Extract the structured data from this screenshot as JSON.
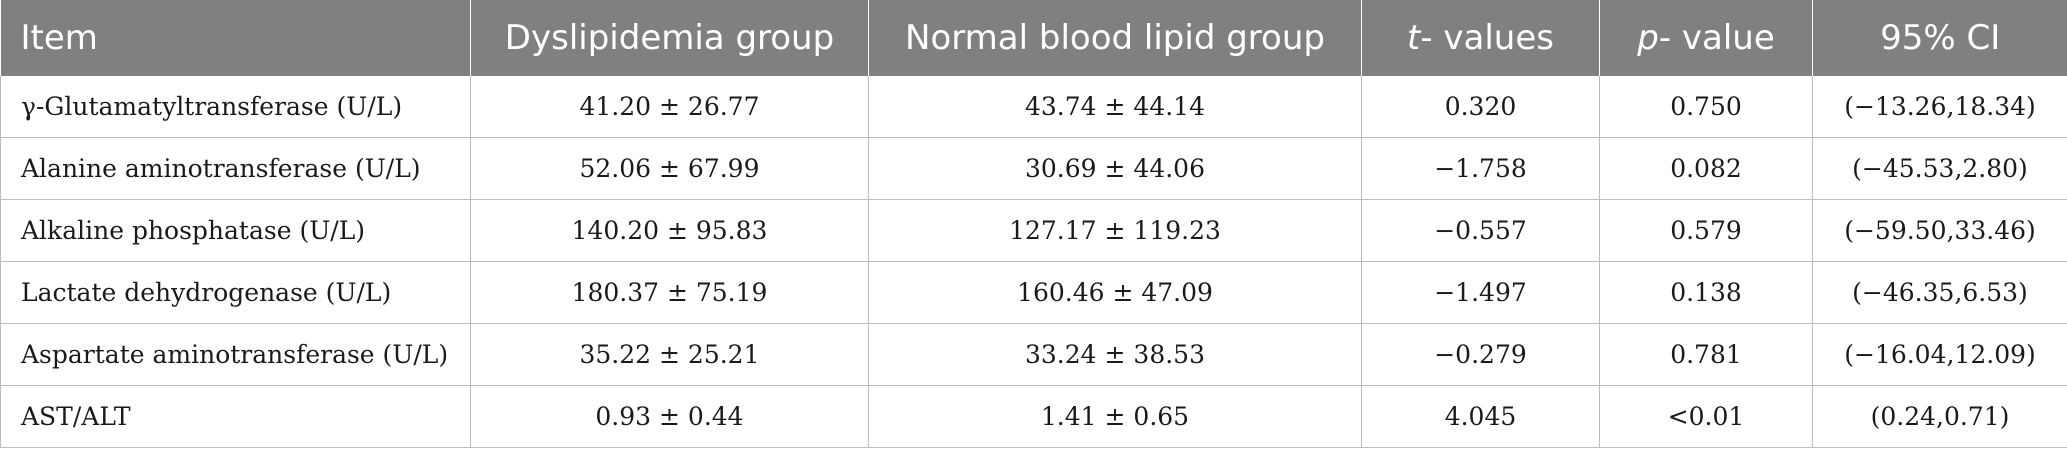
{
  "header": {
    "item": "Item",
    "dyslipidemia": "Dyslipidemia group",
    "normal": "Normal blood lipid group",
    "t_letter": "t",
    "t_suffix": "- values",
    "p_letter": "p",
    "p_suffix": "- value",
    "ci": "95% CI"
  },
  "rows": [
    {
      "item": "γ-Glutamatyltransferase (U/L)",
      "dys": "41.20 ± 26.77",
      "normal": "43.74 ± 44.14",
      "t": "0.320",
      "p": "0.750",
      "ci": "(−13.26,18.34)"
    },
    {
      "item": "Alanine aminotransferase (U/L)",
      "dys": "52.06 ± 67.99",
      "normal": "30.69 ± 44.06",
      "t": "−1.758",
      "p": "0.082",
      "ci": "(−45.53,2.80)"
    },
    {
      "item": "Alkaline phosphatase (U/L)",
      "dys": "140.20 ± 95.83",
      "normal": "127.17 ± 119.23",
      "t": "−0.557",
      "p": "0.579",
      "ci": "(−59.50,33.46)"
    },
    {
      "item": "Lactate dehydrogenase (U/L)",
      "dys": "180.37 ± 75.19",
      "normal": "160.46 ± 47.09",
      "t": "−1.497",
      "p": "0.138",
      "ci": "(−46.35,6.53)"
    },
    {
      "item": "Aspartate aminotransferase (U/L)",
      "dys": "35.22 ± 25.21",
      "normal": "33.24 ± 38.53",
      "t": "−0.279",
      "p": "0.781",
      "ci": "(−16.04,12.09)"
    },
    {
      "item": "AST/ALT",
      "dys": "0.93 ± 0.44",
      "normal": "1.41 ± 0.65",
      "t": "4.045",
      "p": "<0.01",
      "ci": "(0.24,0.71)"
    }
  ]
}
